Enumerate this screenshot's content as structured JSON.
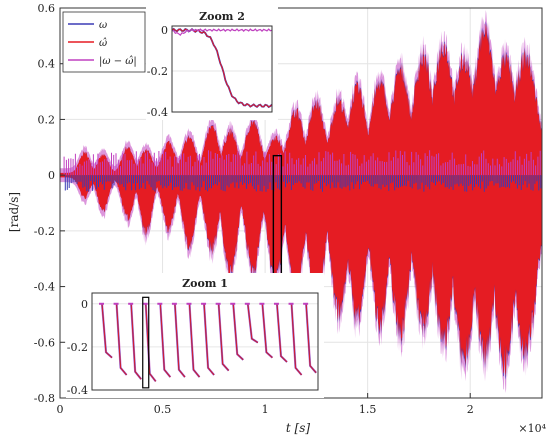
{
  "chart_data": {
    "type": "line",
    "xlabel": "t [s]",
    "x_multiplier": "×10⁴",
    "ylabel": "[rad/s]",
    "xlim": [
      0,
      23500
    ],
    "ylim": [
      -0.8,
      0.6
    ],
    "xticks": [
      0,
      5000,
      10000,
      15000,
      20000
    ],
    "xtick_labels": [
      "0",
      "0.5",
      "1",
      "1.5",
      "2"
    ],
    "yticks": [
      0.6,
      0.4,
      0.2,
      0,
      -0.2,
      -0.4,
      -0.6,
      -0.8
    ],
    "ytick_labels": [
      "0.6",
      "0.4",
      "0.2",
      "0",
      "-0.2",
      "-0.4",
      "-0.6",
      "-0.8"
    ],
    "grid": true,
    "legend_position": "top-left",
    "series": [
      {
        "name": "ω",
        "color": "#3b3bb5"
      },
      {
        "name": "ω̂",
        "color": "#e51c23"
      },
      {
        "name": "|ω − ω̂|",
        "color": "#c040c0"
      }
    ],
    "envelope_bursts": [
      {
        "t": 1200,
        "pos": 0.08,
        "neg": -0.08
      },
      {
        "t": 2100,
        "pos": 0.07,
        "neg": -0.13
      },
      {
        "t": 3300,
        "pos": 0.1,
        "neg": -0.16
      },
      {
        "t": 4200,
        "pos": 0.09,
        "neg": -0.22
      },
      {
        "t": 5300,
        "pos": 0.12,
        "neg": -0.2
      },
      {
        "t": 6300,
        "pos": 0.14,
        "neg": -0.27
      },
      {
        "t": 7400,
        "pos": 0.18,
        "neg": -0.28
      },
      {
        "t": 8300,
        "pos": 0.16,
        "neg": -0.38
      },
      {
        "t": 9400,
        "pos": 0.2,
        "neg": -0.36
      },
      {
        "t": 10500,
        "pos": 0.14,
        "neg": -0.4
      },
      {
        "t": 11500,
        "pos": 0.24,
        "neg": -0.45
      },
      {
        "t": 12500,
        "pos": 0.27,
        "neg": -0.49
      },
      {
        "t": 13600,
        "pos": 0.28,
        "neg": -0.52
      },
      {
        "t": 14500,
        "pos": 0.33,
        "neg": -0.55
      },
      {
        "t": 15600,
        "pos": 0.35,
        "neg": -0.56
      },
      {
        "t": 16600,
        "pos": 0.4,
        "neg": -0.6
      },
      {
        "t": 17700,
        "pos": 0.45,
        "neg": -0.57
      },
      {
        "t": 18700,
        "pos": 0.5,
        "neg": -0.64
      },
      {
        "t": 19700,
        "pos": 0.44,
        "neg": -0.71
      },
      {
        "t": 20700,
        "pos": 0.55,
        "neg": -0.68
      },
      {
        "t": 21700,
        "pos": 0.44,
        "neg": -0.72
      },
      {
        "t": 22700,
        "pos": 0.45,
        "neg": -0.67
      }
    ],
    "insets": [
      {
        "title": "Zoom 1",
        "ylim": [
          -0.4,
          0.05
        ],
        "yticks": [
          0,
          -0.2,
          -0.4
        ],
        "ytick_labels": [
          "0",
          "-0.2",
          "-0.4"
        ],
        "step_min": [
          -0.25,
          -0.33,
          -0.35,
          -0.36,
          -0.34,
          -0.34,
          -0.34,
          -0.33,
          -0.31,
          -0.26,
          -0.18,
          -0.25,
          -0.27,
          -0.33,
          -0.32
        ]
      },
      {
        "title": "Zoom 2",
        "ylim": [
          -0.4,
          0.02
        ],
        "yticks": [
          0,
          -0.2,
          -0.4
        ],
        "ytick_labels": [
          "0",
          "-0.2",
          "-0.4"
        ],
        "step_level": -0.37
      }
    ]
  }
}
